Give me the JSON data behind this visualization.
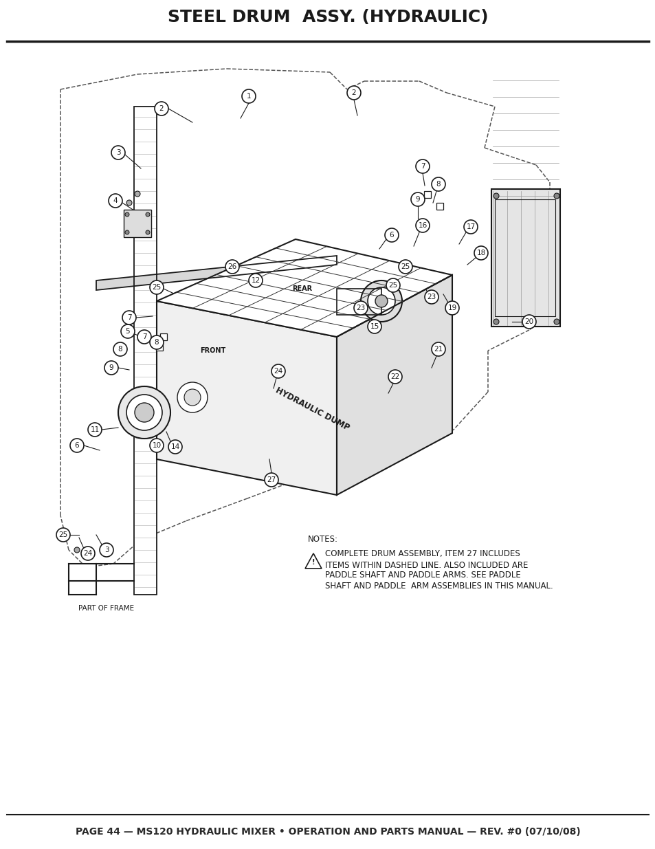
{
  "title": "STEEL DRUM  ASSY. (HYDRAULIC)",
  "footer": "PAGE 44 — MS120 HYDRAULIC MIXER • OPERATION AND PARTS MANUAL — REV. #0 (07/10/08)",
  "notes_header": "NOTES:",
  "notes_line1": "COMPLETE DRUM ASSEMBLY, ITEM 27 INCLUDES",
  "notes_line2": "ITEMS WITHIN DASHED LINE. ALSO INCLUDED ARE",
  "notes_line3": "PADDLE SHAFT AND PADDLE ARMS. SEE PADDLE",
  "notes_line4": "SHAFT AND PADDLE  ARM ASSEMBLIES IN THIS MANUAL.",
  "part_of_frame": "PART OF FRAME",
  "hydraulic_dump": "HYDRAULIC DUMP",
  "front_label": "FRONT",
  "rear_label": "REAR",
  "bg_color": "#ffffff",
  "line_color": "#1a1a1a",
  "title_color": "#1a1a1a",
  "footer_color": "#2a2a2a",
  "title_fontsize": 18,
  "footer_fontsize": 10,
  "notes_fontsize": 8.5
}
